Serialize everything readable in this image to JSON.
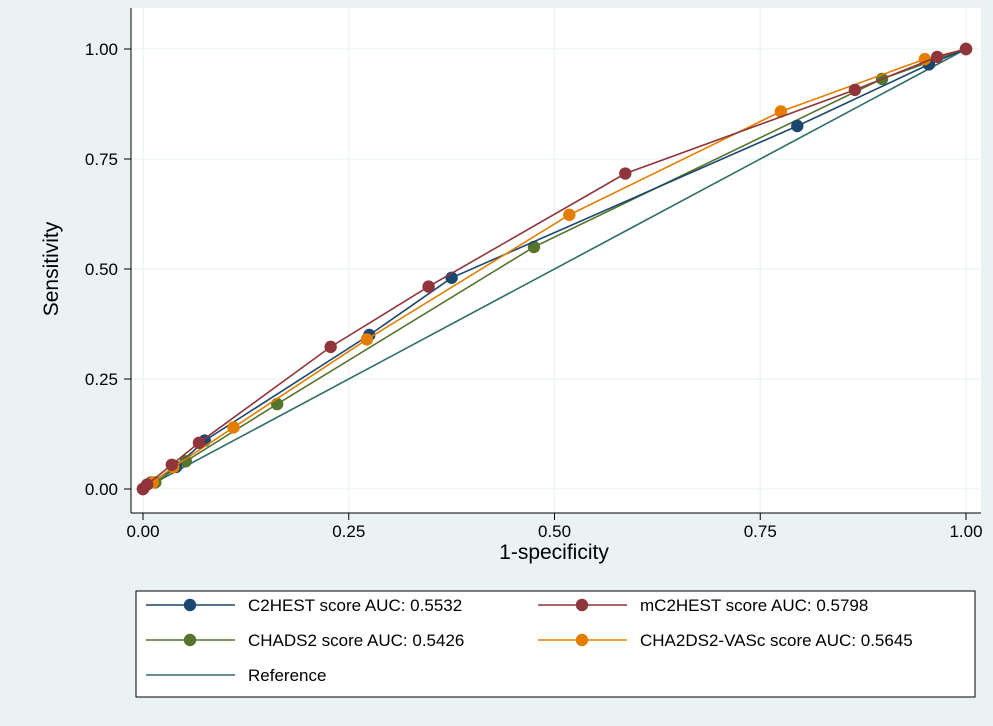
{
  "chart_data": {
    "type": "line",
    "xlabel": "1-specificity",
    "ylabel": "Sensitivity",
    "xlim": [
      0,
      1
    ],
    "ylim": [
      0,
      1
    ],
    "x_ticks": [
      "0.00",
      "0.25",
      "0.50",
      "0.75",
      "1.00"
    ],
    "y_ticks": [
      "0.00",
      "0.25",
      "0.50",
      "0.75",
      "1.00"
    ],
    "grid": true,
    "legend_position": "bottom",
    "series": [
      {
        "name": "C2HEST score AUC: 0.5532",
        "color": "#1a476f",
        "markers": true,
        "points": [
          [
            0.0,
            0.0
          ],
          [
            0.01,
            0.015
          ],
          [
            0.04,
            0.05
          ],
          [
            0.075,
            0.11
          ],
          [
            0.275,
            0.35
          ],
          [
            0.375,
            0.48
          ],
          [
            0.795,
            0.825
          ],
          [
            0.955,
            0.965
          ],
          [
            1.0,
            1.0
          ]
        ]
      },
      {
        "name": "mC2HEST score AUC: 0.5798",
        "color": "#90353b",
        "markers": true,
        "points": [
          [
            0.0,
            0.0
          ],
          [
            0.005,
            0.01
          ],
          [
            0.035,
            0.055
          ],
          [
            0.068,
            0.105
          ],
          [
            0.228,
            0.323
          ],
          [
            0.347,
            0.46
          ],
          [
            0.586,
            0.717
          ],
          [
            0.865,
            0.907
          ],
          [
            0.965,
            0.982
          ],
          [
            1.0,
            1.0
          ]
        ]
      },
      {
        "name": "CHADS2 score AUC: 0.5426",
        "color": "#55752f",
        "markers": true,
        "points": [
          [
            0.0,
            0.0
          ],
          [
            0.015,
            0.015
          ],
          [
            0.052,
            0.063
          ],
          [
            0.163,
            0.193
          ],
          [
            0.475,
            0.55
          ],
          [
            0.898,
            0.932
          ],
          [
            1.0,
            1.0
          ]
        ]
      },
      {
        "name": "CHA2DS2-VASc score AUC: 0.5645",
        "color": "#e37e00",
        "markers": true,
        "points": [
          [
            0.0,
            0.0
          ],
          [
            0.012,
            0.015
          ],
          [
            0.037,
            0.05
          ],
          [
            0.11,
            0.14
          ],
          [
            0.272,
            0.34
          ],
          [
            0.518,
            0.623
          ],
          [
            0.775,
            0.858
          ],
          [
            0.95,
            0.977
          ],
          [
            1.0,
            1.0
          ]
        ]
      },
      {
        "name": "Reference",
        "color": "#2e6e68",
        "markers": false,
        "points": [
          [
            0.0,
            0.0
          ],
          [
            1.0,
            1.0
          ]
        ]
      }
    ]
  }
}
